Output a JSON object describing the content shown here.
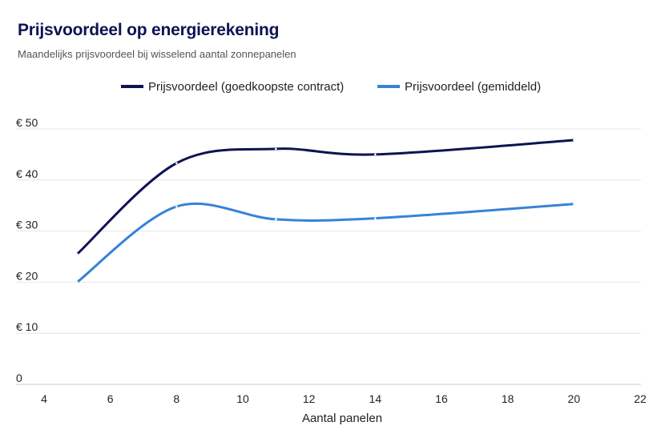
{
  "chart_data": {
    "type": "line",
    "title": "Prijsvoordeel op energierekening",
    "subtitle": "Maandelijks prijsvoordeel bij wisselend aantal zonnepanelen",
    "xlabel": "Aantal panelen",
    "ylabel": "",
    "x": [
      5,
      8,
      11,
      14,
      20
    ],
    "xlim": [
      4,
      22
    ],
    "ylim": [
      0,
      50
    ],
    "xticks": [
      4,
      6,
      8,
      10,
      12,
      14,
      16,
      18,
      20,
      22
    ],
    "yticks": [
      0,
      10,
      20,
      30,
      40,
      50
    ],
    "xtick_labels": [
      "4",
      "6",
      "8",
      "10",
      "12",
      "14",
      "16",
      "18",
      "20",
      "22"
    ],
    "ytick_labels": [
      "0",
      "€ 10",
      "€ 20",
      "€ 30",
      "€ 40",
      "€ 50"
    ],
    "grid": true,
    "legend_position": "top-center",
    "series": [
      {
        "name": "Prijsvoordeel (goedkoopste contract)",
        "color": "#0d1352",
        "values": [
          25.5,
          43.3,
          46.1,
          45.0,
          47.8
        ]
      },
      {
        "name": "Prijsvoordeel (gemiddeld)",
        "color": "#3683d6",
        "values": [
          20.0,
          34.8,
          32.3,
          32.5,
          35.3
        ]
      }
    ]
  }
}
